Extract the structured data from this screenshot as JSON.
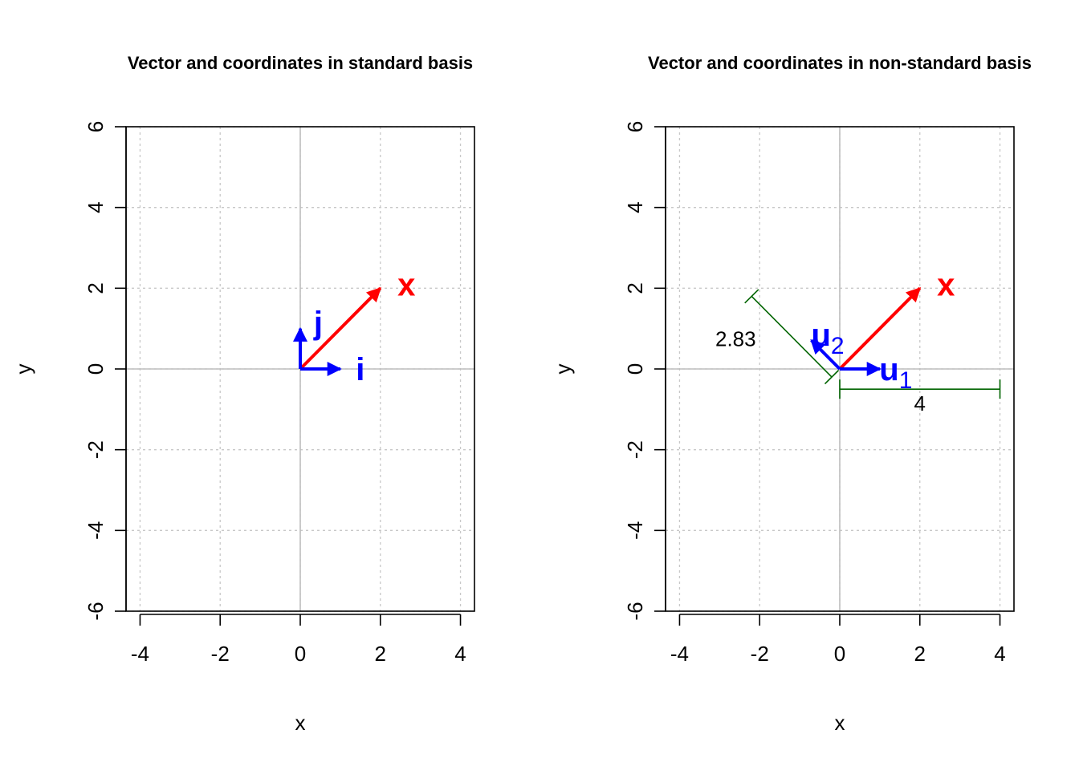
{
  "colors": {
    "vector": "#ff0000",
    "basis": "#0000ff",
    "dimension": "#006400",
    "grid": "#c8c8c8",
    "axis_ref": "#bebebe"
  },
  "chart_data": [
    {
      "type": "vector-plot",
      "title": "Vector and coordinates in standard basis",
      "xlabel": "x",
      "ylabel": "y",
      "xlim": [
        -4.35,
        4.35
      ],
      "ylim": [
        -6,
        6
      ],
      "xticks": [
        -4,
        -2,
        0,
        2,
        4
      ],
      "yticks": [
        -6,
        -4,
        -2,
        0,
        2,
        4,
        6
      ],
      "grid": true,
      "vectors": [
        {
          "name": "x",
          "from": [
            0,
            0
          ],
          "to": [
            2,
            2
          ],
          "color": "#ff0000",
          "label": "x",
          "label_at": [
            2.65,
            2.1
          ]
        },
        {
          "name": "i",
          "from": [
            0,
            0
          ],
          "to": [
            1,
            0
          ],
          "color": "#0000ff",
          "label": "i",
          "label_at": [
            1.5,
            0
          ]
        },
        {
          "name": "j",
          "from": [
            0,
            0
          ],
          "to": [
            0,
            1
          ],
          "color": "#0000ff",
          "label": "j",
          "label_at": [
            0.45,
            1.15
          ]
        }
      ],
      "dimensions": []
    },
    {
      "type": "vector-plot",
      "title": "Vector and coordinates in non-standard basis",
      "xlabel": "x",
      "ylabel": "y",
      "xlim": [
        -4.35,
        4.35
      ],
      "ylim": [
        -6,
        6
      ],
      "xticks": [
        -4,
        -2,
        0,
        2,
        4
      ],
      "yticks": [
        -6,
        -4,
        -2,
        0,
        2,
        4,
        6
      ],
      "grid": true,
      "vectors": [
        {
          "name": "x",
          "from": [
            0,
            0
          ],
          "to": [
            2,
            2
          ],
          "color": "#ff0000",
          "label": "x",
          "label_at": [
            2.65,
            2.1
          ]
        },
        {
          "name": "u1",
          "from": [
            0,
            0
          ],
          "to": [
            1,
            0
          ],
          "color": "#0000ff",
          "label": "u",
          "sub": "1",
          "label_at": [
            1.4,
            0
          ]
        },
        {
          "name": "u2",
          "from": [
            0,
            0
          ],
          "to": [
            -0.71,
            0.71
          ],
          "color": "#0000ff",
          "label": "u",
          "sub": "2",
          "label_at": [
            -0.3,
            0.85
          ]
        }
      ],
      "dimensions": [
        {
          "from": [
            0,
            -0.5
          ],
          "to": [
            4,
            -0.5
          ],
          "label": "4",
          "label_at": [
            2,
            -0.85
          ],
          "color": "#006400"
        },
        {
          "from": [
            -0.2,
            -0.2
          ],
          "to": [
            -2.2,
            1.8
          ],
          "label": "2.83",
          "label_at": [
            -2.6,
            0.75
          ],
          "color": "#006400"
        }
      ]
    }
  ]
}
